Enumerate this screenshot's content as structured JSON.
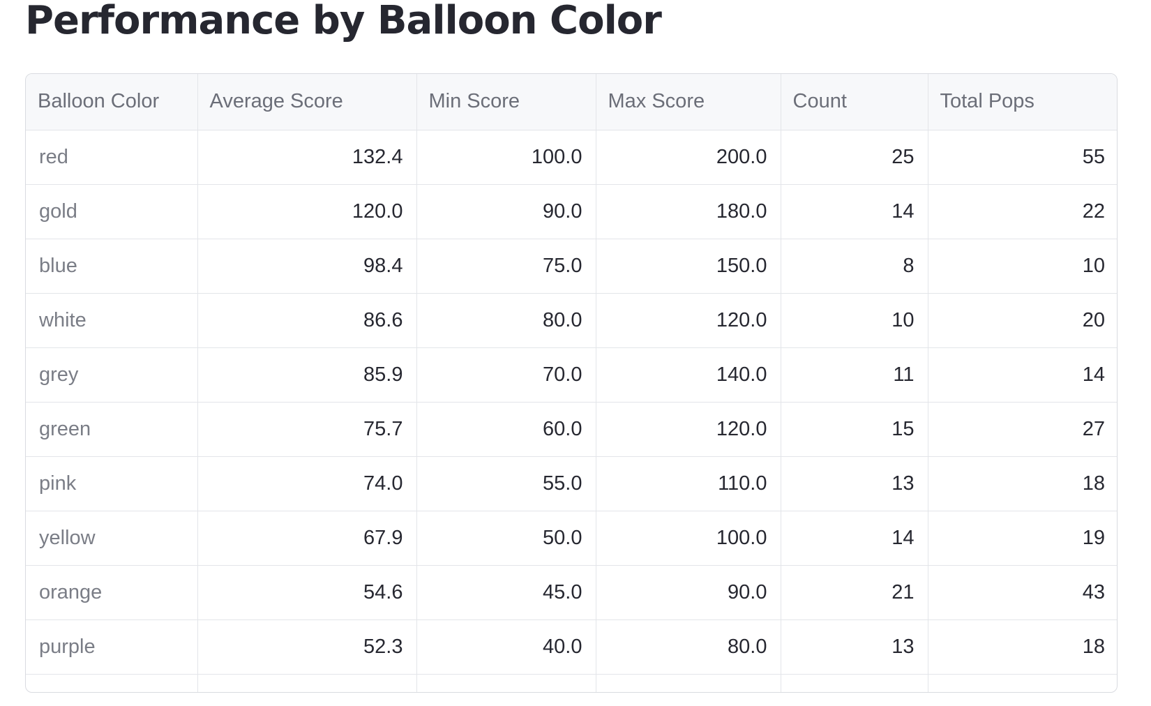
{
  "page": {
    "title": "Performance by Balloon Color"
  },
  "table": {
    "columns": [
      "Balloon Color",
      "Average Score",
      "Min Score",
      "Max Score",
      "Count",
      "Total Pops"
    ],
    "rows": [
      [
        "red",
        "132.4",
        "100.0",
        "200.0",
        "25",
        "55"
      ],
      [
        "gold",
        "120.0",
        "90.0",
        "180.0",
        "14",
        "22"
      ],
      [
        "blue",
        "98.4",
        "75.0",
        "150.0",
        "8",
        "10"
      ],
      [
        "white",
        "86.6",
        "80.0",
        "120.0",
        "10",
        "20"
      ],
      [
        "grey",
        "85.9",
        "70.0",
        "140.0",
        "11",
        "14"
      ],
      [
        "green",
        "75.7",
        "60.0",
        "120.0",
        "15",
        "27"
      ],
      [
        "pink",
        "74.0",
        "55.0",
        "110.0",
        "13",
        "18"
      ],
      [
        "yellow",
        "67.9",
        "50.0",
        "100.0",
        "14",
        "19"
      ],
      [
        "orange",
        "54.6",
        "45.0",
        "90.0",
        "21",
        "43"
      ],
      [
        "purple",
        "52.3",
        "40.0",
        "80.0",
        "13",
        "18"
      ]
    ]
  }
}
